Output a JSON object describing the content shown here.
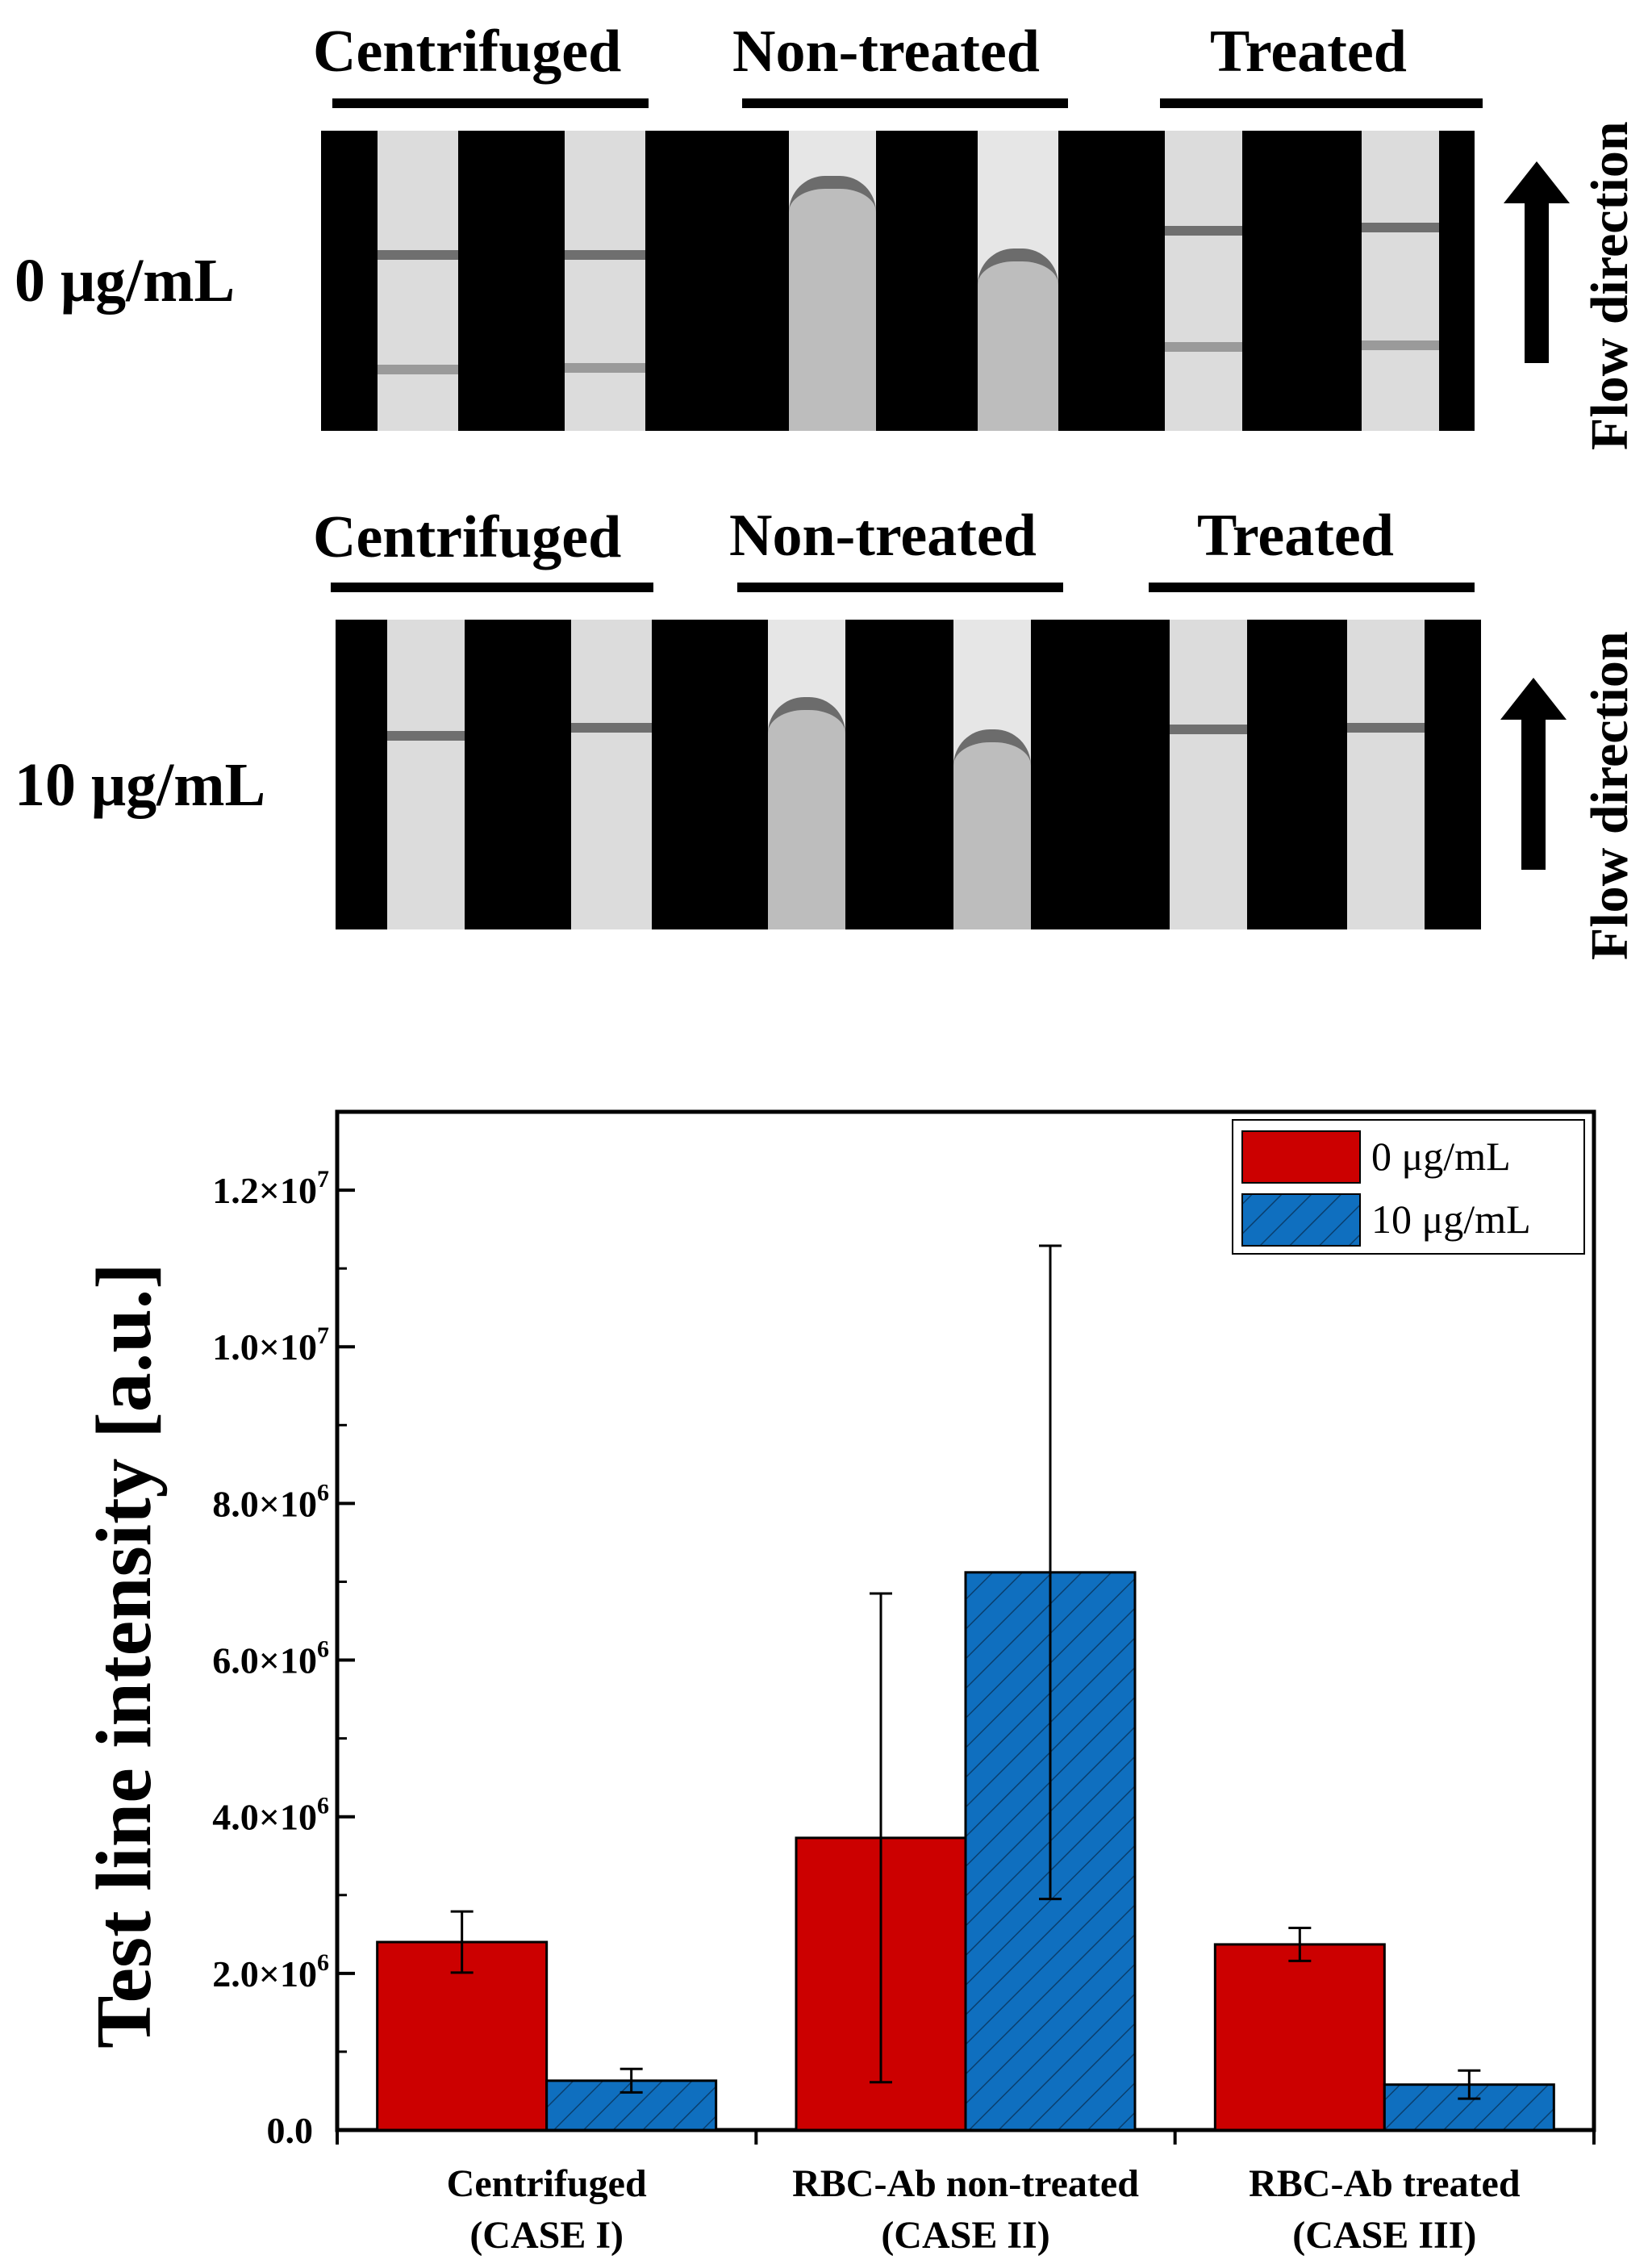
{
  "photo_panels": [
    {
      "row_label": "0 μg/mL",
      "group_labels": [
        "Centrifuged",
        "Non-treated",
        "Treated"
      ],
      "flow_label": "Flow direction"
    },
    {
      "row_label": "10 μg/mL",
      "group_labels": [
        "Centrifuged",
        "Non-treated",
        "Treated"
      ],
      "flow_label": "Flow direction"
    }
  ],
  "colors": {
    "red": "#cc0000",
    "blue": "#0f6fbf",
    "axis": "#000000"
  },
  "chart_data": {
    "type": "bar",
    "title": "",
    "xlabel": "",
    "ylabel": "Test line intensity [a.u.]",
    "categories": [
      [
        "Centrifuged",
        "(CASE I)"
      ],
      [
        "RBC-Ab non-treated",
        "(CASE II)"
      ],
      [
        "RBC-Ab treated",
        "(CASE III)"
      ]
    ],
    "series": [
      {
        "name": "0 μg/mL",
        "fill": "solid",
        "values": [
          2400000,
          3730000,
          2370000
        ],
        "errors": [
          390000,
          3120000,
          210000
        ]
      },
      {
        "name": "10 μg/mL",
        "fill": "hatched",
        "values": [
          630000,
          7120000,
          580000
        ],
        "errors": [
          150000,
          4170000,
          180000
        ]
      }
    ],
    "ylim": [
      0,
      13000000
    ],
    "yticks": [
      {
        "value": 0,
        "label": "0.0"
      },
      {
        "value": 2000000,
        "label": "2.0×10",
        "exp": "6"
      },
      {
        "value": 4000000,
        "label": "4.0×10",
        "exp": "6"
      },
      {
        "value": 6000000,
        "label": "6.0×10",
        "exp": "6"
      },
      {
        "value": 8000000,
        "label": "8.0×10",
        "exp": "6"
      },
      {
        "value": 10000000,
        "label": "1.0×10",
        "exp": "7"
      },
      {
        "value": 12000000,
        "label": "1.2×10",
        "exp": "7"
      }
    ],
    "legend_position": "top-right"
  }
}
